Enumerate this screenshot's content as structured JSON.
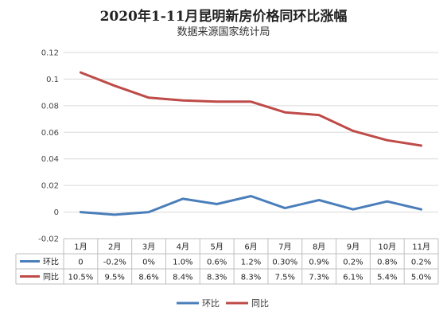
{
  "chart_data": {
    "type": "line",
    "title": "2020年1-11月昆明新房价格同环比涨幅",
    "subtitle": "数据来源国家统计局",
    "categories": [
      "1月",
      "2月",
      "3月",
      "4月",
      "5月",
      "6月",
      "7月",
      "8月",
      "9月",
      "10月",
      "11月"
    ],
    "ylim": [
      -0.02,
      0.12
    ],
    "yticks": [
      "0.12",
      "0.1",
      "0.08",
      "0.06",
      "0.04",
      "0.02",
      "0",
      "-0.02"
    ],
    "ytick_values": [
      0.12,
      0.1,
      0.08,
      0.06,
      0.04,
      0.02,
      0,
      -0.02
    ],
    "grid": true,
    "legend_position": "bottom",
    "series": [
      {
        "name": "环比",
        "color": "#4a7ebb",
        "values": [
          0,
          -0.002,
          0,
          0.01,
          0.006,
          0.012,
          0.003,
          0.009,
          0.002,
          0.008,
          0.002
        ],
        "labels": [
          "0",
          "-0.2%",
          "0%",
          "1.0%",
          "0.6%",
          "1.2%",
          "0.30%",
          "0.9%",
          "0.2%",
          "0.8%",
          "0.2%"
        ]
      },
      {
        "name": "同比",
        "color": "#be4b48",
        "values": [
          0.105,
          0.095,
          0.086,
          0.084,
          0.083,
          0.083,
          0.075,
          0.073,
          0.061,
          0.054,
          0.05
        ],
        "labels": [
          "10.5%",
          "9.5%",
          "8.6%",
          "8.4%",
          "8.3%",
          "8.3%",
          "7.5%",
          "7.3%",
          "6.1%",
          "5.4%",
          "5.0%"
        ]
      }
    ]
  }
}
